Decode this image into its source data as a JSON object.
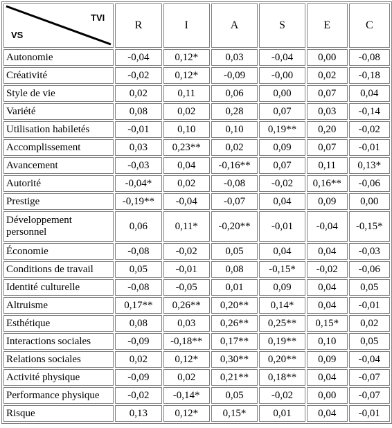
{
  "header": {
    "corner_top": "TVI",
    "corner_bottom": "VS",
    "columns": [
      "R",
      "I",
      "A",
      "S",
      "E",
      "C"
    ]
  },
  "rows": [
    {
      "label": "Autonomie",
      "values": [
        "-0,04",
        "0,12*",
        "0,03",
        "-0,04",
        "0,00",
        "-0,08"
      ]
    },
    {
      "label": "Créativité",
      "values": [
        "-0,02",
        "0,12*",
        "-0,09",
        "-0,00",
        "0,02",
        "-0,18"
      ]
    },
    {
      "label": "Style de vie",
      "values": [
        "0,02",
        "0,11",
        "0,06",
        "0,00",
        "0,07",
        "0,04"
      ]
    },
    {
      "label": "Variété",
      "values": [
        "0,08",
        "0,02",
        "0,28",
        "0,07",
        "0,03",
        "-0,14"
      ]
    },
    {
      "label": "Utilisation habiletés",
      "values": [
        "-0,01",
        "0,10",
        "0,10",
        "0,19**",
        "0,20",
        "-0,02"
      ]
    },
    {
      "label": "Accomplissement",
      "values": [
        "0,03",
        "0,23**",
        "0,02",
        "0,09",
        "0,07",
        "-0,01"
      ]
    },
    {
      "label": "Avancement",
      "values": [
        "-0,03",
        "0,04",
        "-0,16**",
        "0,07",
        "0,11",
        "0,13*"
      ]
    },
    {
      "label": "Autorité",
      "values": [
        "-0,04*",
        "0,02",
        "-0,08",
        "-0,02",
        "0,16**",
        "-0,06"
      ]
    },
    {
      "label": "Prestige",
      "values": [
        "-0,19**",
        "-0,04",
        "-0,07",
        "0,04",
        "0,09",
        "0,00"
      ]
    },
    {
      "label": "Développement personnel",
      "values": [
        "0,06",
        "0,11*",
        "-0,20**",
        "-0,01",
        "-0,04",
        "-0,15*"
      ]
    },
    {
      "label": "Économie",
      "values": [
        "-0,08",
        "-0,02",
        "0,05",
        "0,04",
        "0,04",
        "-0,03"
      ]
    },
    {
      "label": "Conditions de travail",
      "values": [
        "0,05",
        "-0,01",
        "0,08",
        "-0,15*",
        "-0,02",
        "-0,06"
      ]
    },
    {
      "label": "Identité culturelle",
      "values": [
        "-0,08",
        "-0,05",
        "0,01",
        "0,09",
        "0,04",
        "0,05"
      ]
    },
    {
      "label": "Altruisme",
      "values": [
        "0,17**",
        "0,26**",
        "0,20**",
        "0,14*",
        "0,04",
        "-0,01"
      ]
    },
    {
      "label": "Esthétique",
      "values": [
        "0,08",
        "0,03",
        "0,26**",
        "0,25**",
        "0,15*",
        "0,02"
      ]
    },
    {
      "label": "Interactions sociales",
      "values": [
        "-0,09",
        "-0,18**",
        "0,17**",
        "0,19**",
        "0,10",
        "0,05"
      ]
    },
    {
      "label": "Relations sociales",
      "values": [
        "0,02",
        "0,12*",
        "0,30**",
        "0,20**",
        "0,09",
        "-0,04"
      ]
    },
    {
      "label": "Activité physique",
      "values": [
        "-0,09",
        "0,02",
        "0,21**",
        "0,18**",
        "0,04",
        "-0,07"
      ]
    },
    {
      "label": "Performance physique",
      "values": [
        "-0,02",
        "-0,14*",
        "0,05",
        "-0,02",
        "0,00",
        "-0,07"
      ]
    },
    {
      "label": "Risque",
      "values": [
        "0,13",
        "0,12*",
        "0,15*",
        "0,01",
        "0,04",
        "-0,01"
      ]
    }
  ]
}
